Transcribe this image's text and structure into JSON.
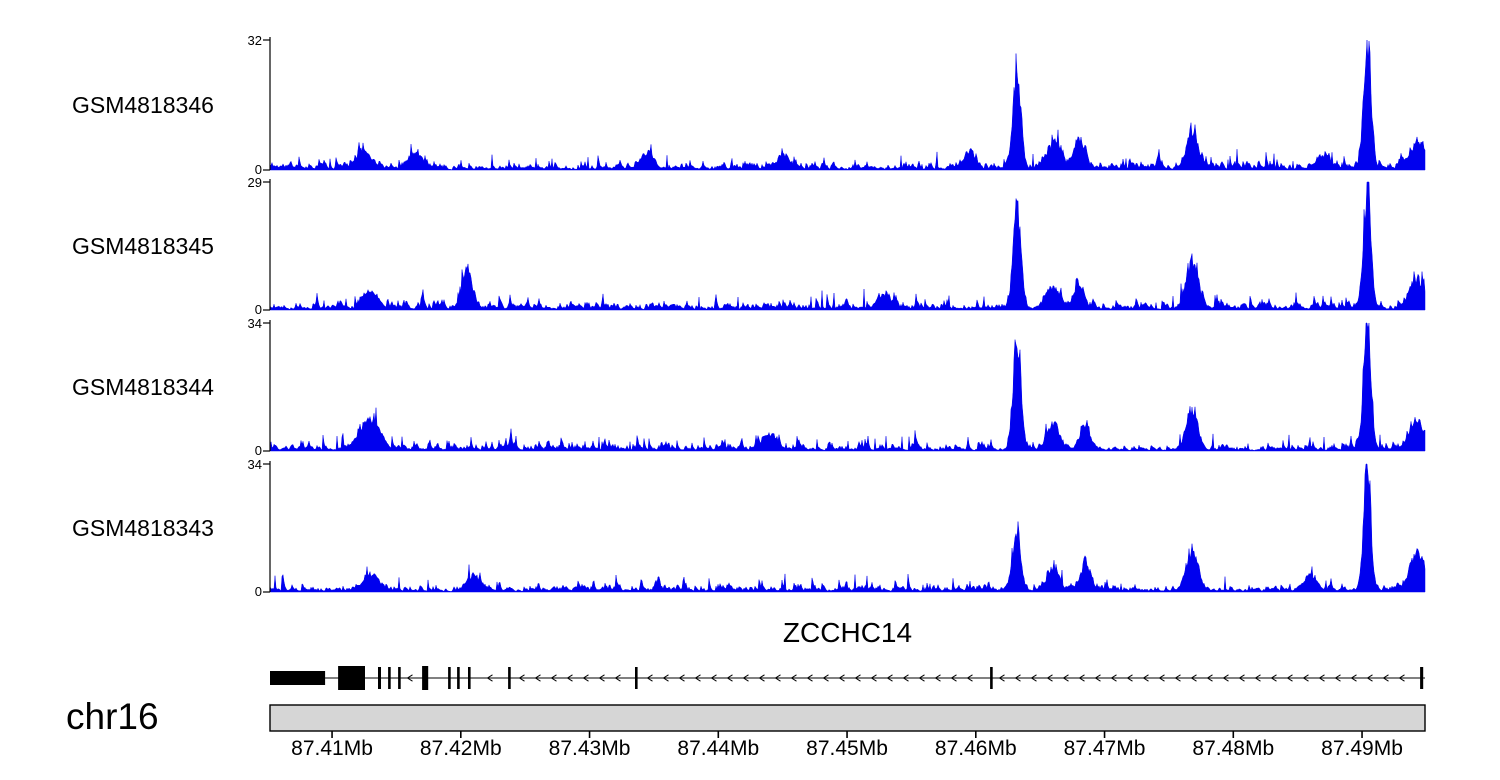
{
  "chart_data": {
    "type": "area",
    "description": "Genome browser figure: four ChIP-seq coverage tracks over chr16 around the ZCCHC14 gene, minus-strand gene model and genomic coordinate axis",
    "chromosome": "chr16",
    "signal_color": "#0000ee",
    "y_zero_label": "0",
    "x_axis": {
      "range_mb": [
        87.40518,
        87.49489
      ],
      "ticks_mb": [
        87.41,
        87.42,
        87.43,
        87.44,
        87.45,
        87.46,
        87.47,
        87.48,
        87.49
      ],
      "tick_labels": [
        "87.41Mb",
        "87.42Mb",
        "87.43Mb",
        "87.44Mb",
        "87.45Mb",
        "87.46Mb",
        "87.47Mb",
        "87.48Mb",
        "87.49Mb"
      ]
    },
    "tracks": [
      {
        "name": "GSM4818346",
        "ymax": 32,
        "ymin": 0,
        "seed": 11,
        "noise_mean": 1.0,
        "noise_spike": 3.8,
        "peaks": [
          [
            87.4632,
            24,
            0.0003
          ],
          [
            87.4904,
            32,
            0.00028
          ],
          [
            87.4768,
            8,
            0.00045
          ],
          [
            87.466,
            6,
            0.0005
          ],
          [
            87.468,
            7,
            0.0004
          ],
          [
            87.4595,
            4,
            0.0004
          ],
          [
            87.4125,
            4,
            0.0006
          ],
          [
            87.4165,
            4,
            0.0005
          ],
          [
            87.4943,
            6,
            0.0006
          ],
          [
            87.487,
            3.5,
            0.0005
          ],
          [
            87.4345,
            3.5,
            0.0005
          ],
          [
            87.445,
            3,
            0.0005
          ]
        ]
      },
      {
        "name": "GSM4818345",
        "ymax": 29,
        "ymin": 0,
        "seed": 22,
        "noise_mean": 1.0,
        "noise_spike": 3.6,
        "peaks": [
          [
            87.4632,
            22,
            0.0003
          ],
          [
            87.4904,
            29,
            0.00028
          ],
          [
            87.4768,
            10,
            0.00045
          ],
          [
            87.4205,
            7,
            0.0004
          ],
          [
            87.466,
            5,
            0.0005
          ],
          [
            87.468,
            5,
            0.0004
          ],
          [
            87.4943,
            6,
            0.0006
          ],
          [
            87.413,
            3.5,
            0.0005
          ],
          [
            87.453,
            3,
            0.0005
          ]
        ]
      },
      {
        "name": "GSM4818344",
        "ymax": 34,
        "ymin": 0,
        "seed": 33,
        "noise_mean": 1.05,
        "noise_spike": 3.8,
        "peaks": [
          [
            87.4632,
            30,
            0.0003
          ],
          [
            87.4904,
            34,
            0.00028
          ],
          [
            87.4768,
            10,
            0.00045
          ],
          [
            87.466,
            6,
            0.0005
          ],
          [
            87.4125,
            6,
            0.0006
          ],
          [
            87.4135,
            5,
            0.0005
          ],
          [
            87.4943,
            7,
            0.0006
          ],
          [
            87.444,
            4,
            0.0005
          ],
          [
            87.4685,
            6,
            0.0004
          ]
        ]
      },
      {
        "name": "GSM4818343",
        "ymax": 34,
        "ymin": 0,
        "seed": 44,
        "noise_mean": 1.05,
        "noise_spike": 3.8,
        "peaks": [
          [
            87.4632,
            15,
            0.0003
          ],
          [
            87.4904,
            34,
            0.00028
          ],
          [
            87.4768,
            11,
            0.00045
          ],
          [
            87.466,
            5,
            0.0005
          ],
          [
            87.4943,
            9,
            0.0006
          ],
          [
            87.486,
            4,
            0.0005
          ],
          [
            87.4685,
            6,
            0.0004
          ],
          [
            87.413,
            4,
            0.0006
          ],
          [
            87.421,
            4,
            0.0005
          ]
        ]
      }
    ],
    "gene": {
      "name": "ZCCHC14",
      "strand": "-",
      "exons": [
        {
          "s": 87.40518,
          "e": 87.40946,
          "h": 14
        },
        {
          "s": 87.41047,
          "e": 87.41256,
          "h": 24
        },
        {
          "s": 87.41357,
          "e": 87.4138,
          "h": 22
        },
        {
          "s": 87.41435,
          "e": 87.41455,
          "h": 22
        },
        {
          "s": 87.41513,
          "e": 87.41533,
          "h": 22
        },
        {
          "s": 87.41699,
          "e": 87.41746,
          "h": 24
        },
        {
          "s": 87.41901,
          "e": 87.41921,
          "h": 22
        },
        {
          "s": 87.41971,
          "e": 87.41991,
          "h": 22
        },
        {
          "s": 87.42056,
          "e": 87.42076,
          "h": 22
        },
        {
          "s": 87.42367,
          "e": 87.42387,
          "h": 22
        },
        {
          "s": 87.43353,
          "e": 87.43373,
          "h": 22
        },
        {
          "s": 87.46111,
          "e": 87.46131,
          "h": 22
        },
        {
          "s": 87.49451,
          "e": 87.49475,
          "h": 22
        }
      ]
    }
  }
}
